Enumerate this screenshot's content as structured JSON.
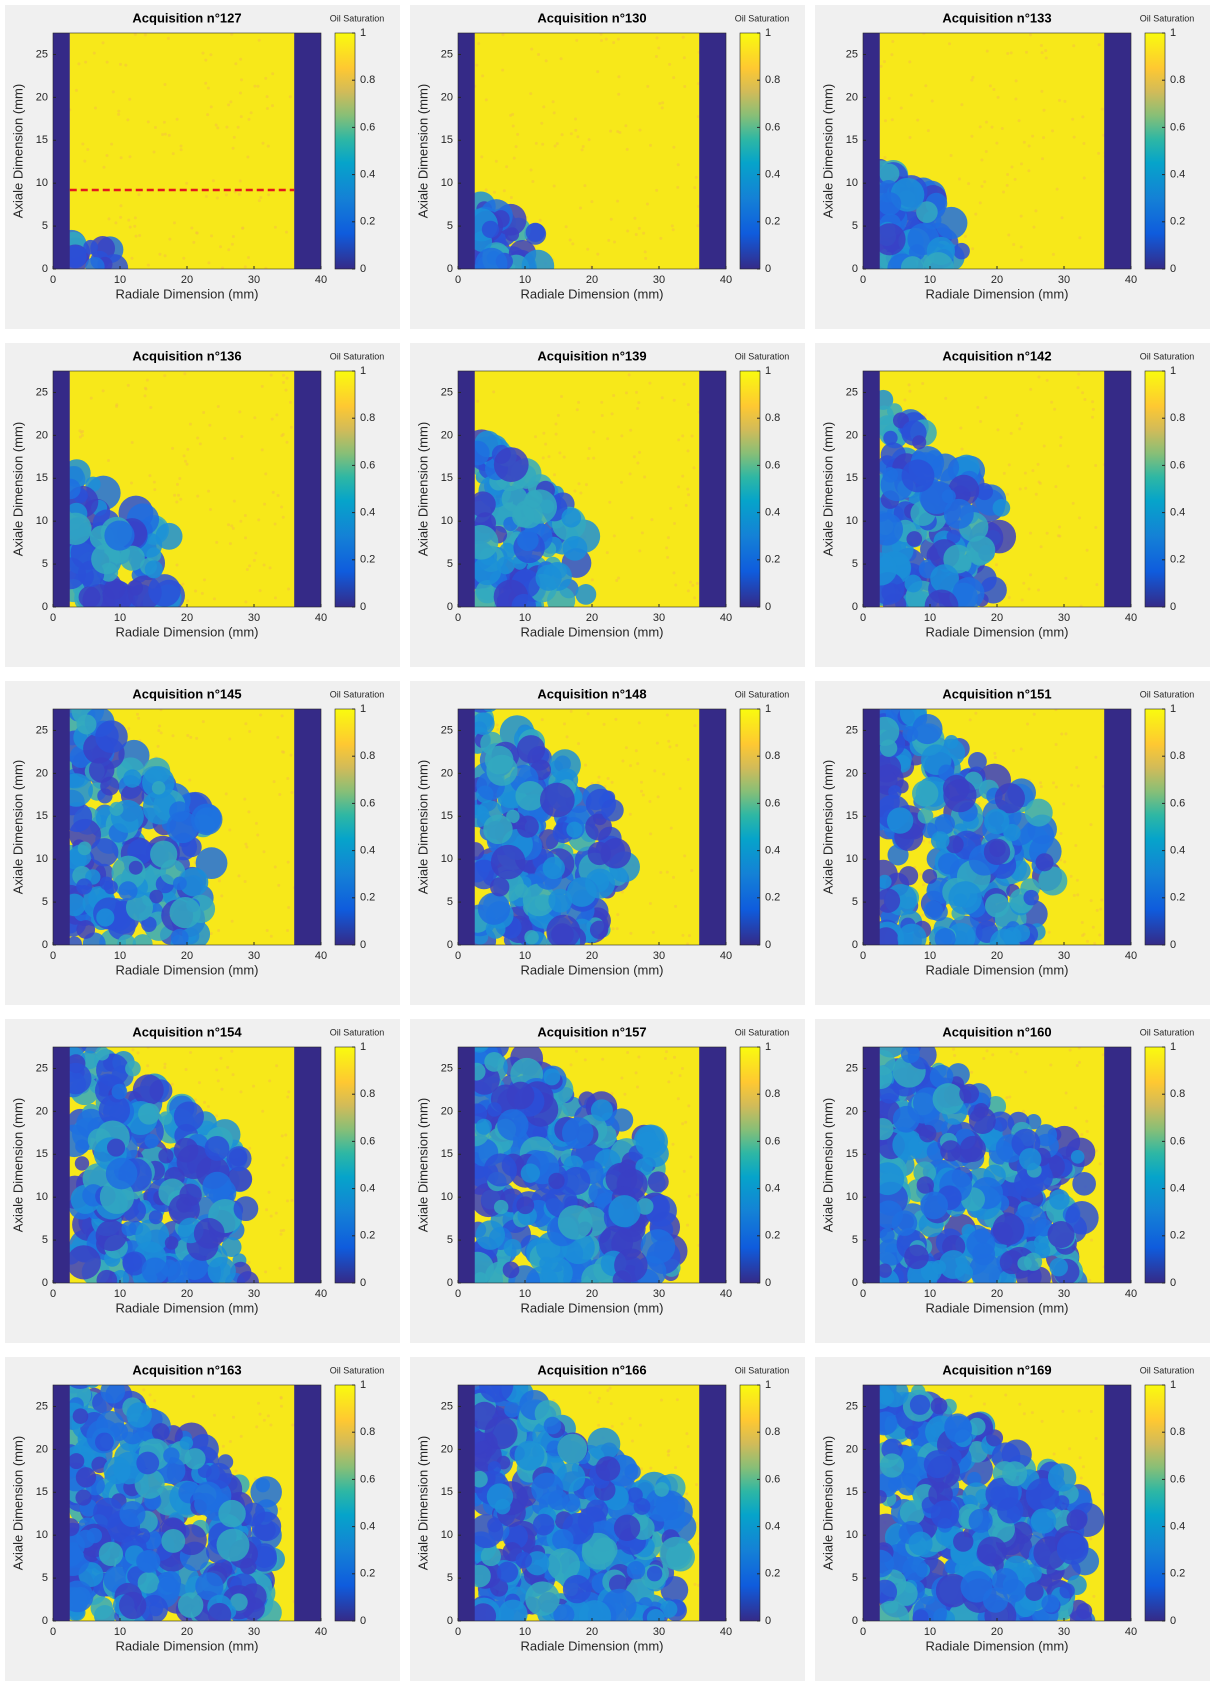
{
  "chart_data": [
    {
      "type": "heatmap",
      "title": "Acquisition n°127",
      "colorbar_label": "Oil Saturation",
      "xlabel": "Radiale Dimension (mm)",
      "ylabel": "Axiale Dimension (mm)",
      "xlim": [
        0,
        40
      ],
      "ylim": [
        0,
        27.5
      ],
      "xticks": [
        0,
        10,
        20,
        30,
        40
      ],
      "yticks": [
        0,
        5,
        10,
        15,
        20,
        25
      ],
      "clim": [
        0,
        1
      ],
      "cticks": [
        0,
        0.2,
        0.4,
        0.6,
        0.8,
        1
      ],
      "hline": 9.2
    },
    {
      "type": "heatmap",
      "title": "Acquisition n°130",
      "colorbar_label": "Oil Saturation",
      "xlabel": "Radiale Dimension (mm)",
      "ylabel": "Axiale Dimension (mm)",
      "xlim": [
        0,
        40
      ],
      "ylim": [
        0,
        27.5
      ],
      "xticks": [
        0,
        10,
        20,
        30,
        40
      ],
      "yticks": [
        0,
        5,
        10,
        15,
        20,
        25
      ],
      "clim": [
        0,
        1
      ],
      "cticks": [
        0,
        0.2,
        0.4,
        0.6,
        0.8,
        1
      ]
    },
    {
      "type": "heatmap",
      "title": "Acquisition n°133",
      "colorbar_label": "Oil Saturation",
      "xlabel": "Radiale Dimension (mm)",
      "ylabel": "Axiale Dimension (mm)",
      "xlim": [
        0,
        40
      ],
      "ylim": [
        0,
        27.5
      ],
      "xticks": [
        0,
        10,
        20,
        30,
        40
      ],
      "yticks": [
        0,
        5,
        10,
        15,
        20,
        25
      ],
      "clim": [
        0,
        1
      ],
      "cticks": [
        0,
        0.2,
        0.4,
        0.6,
        0.8,
        1
      ]
    },
    {
      "type": "heatmap",
      "title": "Acquisition n°136",
      "colorbar_label": "Oil Saturation",
      "xlabel": "Radiale Dimension (mm)",
      "ylabel": "Axiale Dimension (mm)",
      "xlim": [
        0,
        40
      ],
      "ylim": [
        0,
        27.5
      ],
      "xticks": [
        0,
        10,
        20,
        30,
        40
      ],
      "yticks": [
        0,
        5,
        10,
        15,
        20,
        25
      ],
      "clim": [
        0,
        1
      ],
      "cticks": [
        0,
        0.2,
        0.4,
        0.6,
        0.8,
        1
      ]
    },
    {
      "type": "heatmap",
      "title": "Acquisition n°139",
      "colorbar_label": "Oil Saturation",
      "xlabel": "Radiale Dimension (mm)",
      "ylabel": "Axiale Dimension (mm)",
      "xlim": [
        0,
        40
      ],
      "ylim": [
        0,
        27.5
      ],
      "xticks": [
        0,
        10,
        20,
        30,
        40
      ],
      "yticks": [
        0,
        5,
        10,
        15,
        20,
        25
      ],
      "clim": [
        0,
        1
      ],
      "cticks": [
        0,
        0.2,
        0.4,
        0.6,
        0.8,
        1
      ]
    },
    {
      "type": "heatmap",
      "title": "Acquisition n°142",
      "colorbar_label": "Oil Saturation",
      "xlabel": "Radiale Dimension (mm)",
      "ylabel": "Axiale Dimension (mm)",
      "xlim": [
        0,
        40
      ],
      "ylim": [
        0,
        27.5
      ],
      "xticks": [
        0,
        10,
        20,
        30,
        40
      ],
      "yticks": [
        0,
        5,
        10,
        15,
        20,
        25
      ],
      "clim": [
        0,
        1
      ],
      "cticks": [
        0,
        0.2,
        0.4,
        0.6,
        0.8,
        1
      ]
    },
    {
      "type": "heatmap",
      "title": "Acquisition n°145",
      "colorbar_label": "Oil Saturation",
      "xlabel": "Radiale Dimension (mm)",
      "ylabel": "Axiale Dimension (mm)",
      "xlim": [
        0,
        40
      ],
      "ylim": [
        0,
        27.5
      ],
      "xticks": [
        0,
        10,
        20,
        30,
        40
      ],
      "yticks": [
        0,
        5,
        10,
        15,
        20,
        25
      ],
      "clim": [
        0,
        1
      ],
      "cticks": [
        0,
        0.2,
        0.4,
        0.6,
        0.8,
        1
      ]
    },
    {
      "type": "heatmap",
      "title": "Acquisition n°148",
      "colorbar_label": "Oil Saturation",
      "xlabel": "Radiale Dimension (mm)",
      "ylabel": "Axiale Dimension (mm)",
      "xlim": [
        0,
        40
      ],
      "ylim": [
        0,
        27.5
      ],
      "xticks": [
        0,
        10,
        20,
        30,
        40
      ],
      "yticks": [
        0,
        5,
        10,
        15,
        20,
        25
      ],
      "clim": [
        0,
        1
      ],
      "cticks": [
        0,
        0.2,
        0.4,
        0.6,
        0.8,
        1
      ]
    },
    {
      "type": "heatmap",
      "title": "Acquisition n°151",
      "colorbar_label": "Oil Saturation",
      "xlabel": "Radiale Dimension (mm)",
      "ylabel": "Axiale Dimension (mm)",
      "xlim": [
        0,
        40
      ],
      "ylim": [
        0,
        27.5
      ],
      "xticks": [
        0,
        10,
        20,
        30,
        40
      ],
      "yticks": [
        0,
        5,
        10,
        15,
        20,
        25
      ],
      "clim": [
        0,
        1
      ],
      "cticks": [
        0,
        0.2,
        0.4,
        0.6,
        0.8,
        1
      ]
    },
    {
      "type": "heatmap",
      "title": "Acquisition n°154",
      "colorbar_label": "Oil Saturation",
      "xlabel": "Radiale Dimension (mm)",
      "ylabel": "Axiale Dimension (mm)",
      "xlim": [
        0,
        40
      ],
      "ylim": [
        0,
        27.5
      ],
      "xticks": [
        0,
        10,
        20,
        30,
        40
      ],
      "yticks": [
        0,
        5,
        10,
        15,
        20,
        25
      ],
      "clim": [
        0,
        1
      ],
      "cticks": [
        0,
        0.2,
        0.4,
        0.6,
        0.8,
        1
      ]
    },
    {
      "type": "heatmap",
      "title": "Acquisition n°157",
      "colorbar_label": "Oil Saturation",
      "xlabel": "Radiale Dimension (mm)",
      "ylabel": "Axiale Dimension (mm)",
      "xlim": [
        0,
        40
      ],
      "ylim": [
        0,
        27.5
      ],
      "xticks": [
        0,
        10,
        20,
        30,
        40
      ],
      "yticks": [
        0,
        5,
        10,
        15,
        20,
        25
      ],
      "clim": [
        0,
        1
      ],
      "cticks": [
        0,
        0.2,
        0.4,
        0.6,
        0.8,
        1
      ]
    },
    {
      "type": "heatmap",
      "title": "Acquisition n°160",
      "colorbar_label": "Oil Saturation",
      "xlabel": "Radiale Dimension (mm)",
      "ylabel": "Axiale Dimension (mm)",
      "xlim": [
        0,
        40
      ],
      "ylim": [
        0,
        27.5
      ],
      "xticks": [
        0,
        10,
        20,
        30,
        40
      ],
      "yticks": [
        0,
        5,
        10,
        15,
        20,
        25
      ],
      "clim": [
        0,
        1
      ],
      "cticks": [
        0,
        0.2,
        0.4,
        0.6,
        0.8,
        1
      ]
    },
    {
      "type": "heatmap",
      "title": "Acquisition n°163",
      "colorbar_label": "Oil Saturation",
      "xlabel": "Radiale Dimension (mm)",
      "ylabel": "Axiale Dimension (mm)",
      "xlim": [
        0,
        40
      ],
      "ylim": [
        0,
        27.5
      ],
      "xticks": [
        0,
        10,
        20,
        30,
        40
      ],
      "yticks": [
        0,
        5,
        10,
        15,
        20,
        25
      ],
      "clim": [
        0,
        1
      ],
      "cticks": [
        0,
        0.2,
        0.4,
        0.6,
        0.8,
        1
      ]
    },
    {
      "type": "heatmap",
      "title": "Acquisition n°166",
      "colorbar_label": "Oil Saturation",
      "xlabel": "Radiale Dimension (mm)",
      "ylabel": "Axiale Dimension (mm)",
      "xlim": [
        0,
        40
      ],
      "ylim": [
        0,
        27.5
      ],
      "xticks": [
        0,
        10,
        20,
        30,
        40
      ],
      "yticks": [
        0,
        5,
        10,
        15,
        20,
        25
      ],
      "clim": [
        0,
        1
      ],
      "cticks": [
        0,
        0.2,
        0.4,
        0.6,
        0.8,
        1
      ]
    },
    {
      "type": "heatmap",
      "title": "Acquisition n°169",
      "colorbar_label": "Oil Saturation",
      "xlabel": "Radiale Dimension (mm)",
      "ylabel": "Axiale Dimension (mm)",
      "xlim": [
        0,
        40
      ],
      "ylim": [
        0,
        27.5
      ],
      "xticks": [
        0,
        10,
        20,
        30,
        40
      ],
      "yticks": [
        0,
        5,
        10,
        15,
        20,
        25
      ],
      "clim": [
        0,
        1
      ],
      "cticks": [
        0,
        0.2,
        0.4,
        0.6,
        0.8,
        1
      ]
    }
  ]
}
